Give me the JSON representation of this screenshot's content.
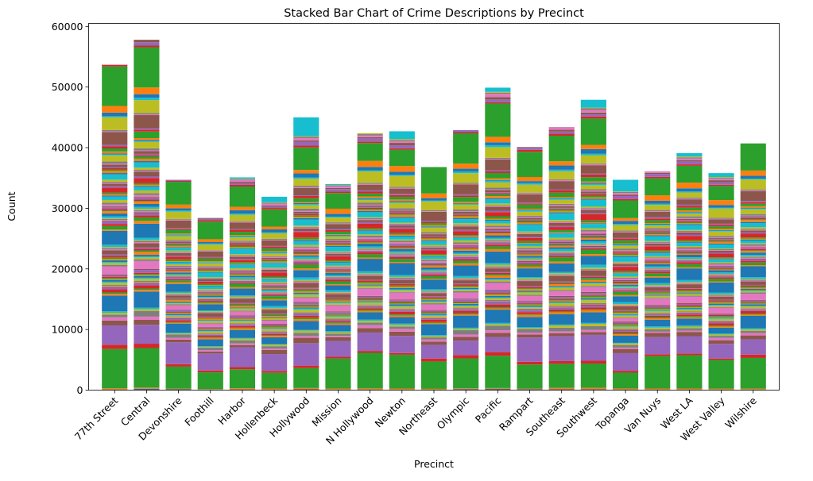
{
  "chart_data": {
    "type": "bar",
    "stacked": true,
    "title": "Stacked Bar Chart of Crime Descriptions by Precinct",
    "xlabel": "Precinct",
    "ylabel": "Count",
    "ylim": [
      0,
      60500
    ],
    "yticks": [
      0,
      10000,
      20000,
      30000,
      40000,
      50000,
      60000
    ],
    "ytick_labels": [
      "0",
      "10000",
      "20000",
      "30000",
      "40000",
      "50000",
      "60000"
    ],
    "x_tick_rotation_deg": 45,
    "categories": [
      "77th Street",
      "Central",
      "Devonshire",
      "Foothill",
      "Harbor",
      "Hollenbeck",
      "Hollywood",
      "Mission",
      "N Hollywood",
      "Newton",
      "Northeast",
      "Olympic",
      "Pacific",
      "Rampart",
      "Southeast",
      "Southwest",
      "Topanga",
      "Van Nuys",
      "West LA",
      "West Valley",
      "Wilshire"
    ],
    "totals": [
      53700,
      57800,
      34700,
      28400,
      35100,
      31900,
      45000,
      34000,
      42400,
      42700,
      36800,
      42900,
      49900,
      40100,
      43400,
      47900,
      34700,
      36100,
      39100,
      35800,
      40700
    ],
    "color_cycle": [
      "#1f77b4",
      "#ff7f0e",
      "#2ca02c",
      "#d62728",
      "#9467bd",
      "#8c564b",
      "#e377c2",
      "#7f7f7f",
      "#bcbd22",
      "#17becf"
    ],
    "series_weights": [
      0.3,
      0.4,
      11.0,
      1.0,
      7.5,
      1.5,
      0.8,
      1.2,
      0.6,
      0.4,
      3.6,
      0.6,
      0.4,
      0.8,
      0.5,
      0.3,
      0.2,
      0.3,
      0.8,
      0.3,
      0.4,
      0.3,
      0.4,
      0.3,
      0.6,
      0.3,
      2.2,
      0.4,
      0.7,
      0.3,
      0.4,
      0.6,
      0.5,
      0.4,
      0.3,
      1.6,
      0.3,
      0.3,
      0.4,
      0.7,
      3.6,
      0.6,
      1.2,
      0.6,
      0.5,
      0.3,
      0.3,
      0.3,
      0.3,
      0.6,
      0.8,
      0.5,
      0.3,
      0.4,
      0.4,
      0.4,
      0.6,
      0.5,
      0.6,
      1.2,
      0.3,
      0.3,
      0.6,
      1.6,
      0.4,
      1.0,
      0.3,
      0.3,
      0.5,
      2.0,
      0.4,
      0.6,
      0.5,
      0.4,
      0.3,
      0.6,
      0.3,
      0.6,
      1.5,
      0.4,
      0.3,
      0.5,
      1.4,
      0.7,
      0.4,
      3.0,
      0.3,
      0.4,
      3.2,
      0.5,
      1.2,
      1.8,
      9.0,
      0.6,
      1.0,
      0.7,
      0.8,
      0.4,
      0.3,
      0.2
    ]
  }
}
